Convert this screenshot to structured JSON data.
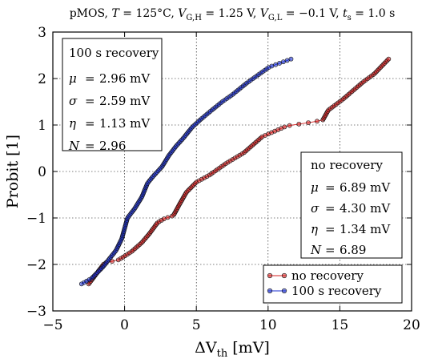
{
  "chart_data": {
    "type": "scatter",
    "title": "pMOS, T = 125°C, V_G,H = 1.25 V, V_G,L = −0.1 V, t_s = 1.0 s",
    "title_parts": {
      "prefix": "pMOS, ",
      "T": "T",
      "T_value": " = 125°C, ",
      "VGH_sym": "V",
      "VGH_sub": "G,H",
      "VGH_value": " = 1.25 V, ",
      "VGL_sym": "V",
      "VGL_sub": "G,L",
      "VGL_value": " = −0.1 V, ",
      "ts_sym": "t",
      "ts_sub": "s",
      "ts_value": " = 1.0 s"
    },
    "xlabel": "ΔV_th [mV]",
    "xlabel_parts": {
      "delta": "ΔV",
      "sub": "th",
      "unit": " [mV]"
    },
    "ylabel": "Probit [1]",
    "xlim": [
      -5,
      20
    ],
    "ylim": [
      -3,
      3
    ],
    "xticks": [
      -5,
      0,
      5,
      10,
      15,
      20
    ],
    "yticks": [
      -3,
      -2,
      -1,
      0,
      1,
      2,
      3
    ],
    "xtick_labels": [
      "−5",
      "0",
      "5",
      "10",
      "15",
      "20"
    ],
    "ytick_labels": [
      "−3",
      "−2",
      "−1",
      "0",
      "1",
      "2",
      "3"
    ],
    "grid": true,
    "legend_position": "bottom-right",
    "series": [
      {
        "name": "no recovery",
        "color": "#d62020",
        "anchors_x": [
          -2.5,
          -1.4,
          -0.4,
          0.5,
          1.2,
          1.7,
          2.3,
          2.8,
          3.4,
          3.8,
          4.3,
          5.0,
          5.9,
          7.1,
          8.3,
          9.6,
          11.3,
          12.8,
          13.8,
          14.2,
          15.2,
          16.6,
          17.4,
          18.4
        ],
        "anchors_y": [
          -2.42,
          -1.97,
          -1.9,
          -1.72,
          -1.53,
          -1.35,
          -1.1,
          -1.01,
          -0.95,
          -0.72,
          -0.45,
          -0.23,
          -0.08,
          0.18,
          0.4,
          0.75,
          0.98,
          1.05,
          1.1,
          1.32,
          1.55,
          1.92,
          2.1,
          2.42
        ],
        "n_points": 160
      },
      {
        "name": "100 s recovery",
        "color": "#1a2ed0",
        "anchors_x": [
          -3.0,
          -2.3,
          -1.5,
          -0.6,
          -0.2,
          0.2,
          0.7,
          1.2,
          1.6,
          2.0,
          2.6,
          3.1,
          3.6,
          4.1,
          4.7,
          5.3,
          6.0,
          6.8,
          7.5,
          8.5,
          9.5,
          10.1,
          11.6
        ],
        "anchors_y": [
          -2.42,
          -2.3,
          -2.05,
          -1.7,
          -1.45,
          -1.0,
          -0.8,
          -0.55,
          -0.25,
          -0.1,
          0.1,
          0.35,
          0.55,
          0.72,
          0.95,
          1.12,
          1.3,
          1.5,
          1.65,
          1.9,
          2.12,
          2.25,
          2.42
        ],
        "n_points": 160
      }
    ],
    "legend": [
      {
        "label": "no recovery",
        "color": "#d62020"
      },
      {
        "label": "100 s recovery",
        "color": "#1a2ed0"
      }
    ],
    "annotations": {
      "recovery_box": {
        "title": "100 s recovery",
        "rows": [
          {
            "sym": "μ",
            "value": "2.96 mV"
          },
          {
            "sym": "σ",
            "value": "2.59 mV"
          },
          {
            "sym": "η",
            "value": "1.13 mV"
          },
          {
            "sym": "N",
            "value": "2.96"
          }
        ]
      },
      "no_recovery_box": {
        "title": "no recovery",
        "rows": [
          {
            "sym": "μ",
            "value": "6.89 mV"
          },
          {
            "sym": "σ",
            "value": "4.30 mV"
          },
          {
            "sym": "η",
            "value": "1.34 mV"
          },
          {
            "sym": "N",
            "value": "6.89"
          }
        ]
      }
    }
  }
}
